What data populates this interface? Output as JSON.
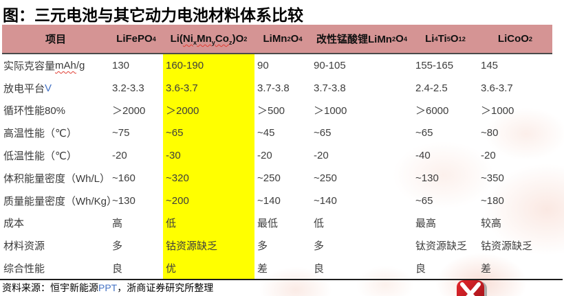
{
  "title": "图：三元电池与其它动力电池材料体系比较",
  "colors": {
    "header_bg": "#d59494",
    "highlight": "#ffff00",
    "logo_red": "#c41e25",
    "squiggle_red": "#e03c31",
    "latin_blue": "#4472c4"
  },
  "table": {
    "highlighted_column_index": 2,
    "columns": [
      {
        "label_html": "项目"
      },
      {
        "label_html": "LiFePO<sub>4</sub>"
      },
      {
        "label_html": "Li(<span class=sq>Ni<sub>x</sub>Mn<sub>y</sub>Co<sub>z</sub></span>)O<sub>2</sub>"
      },
      {
        "label_html": "LiMn<sub>2</sub>O<sub>4</sub>"
      },
      {
        "label_html": "改性锰酸锂LiMn<sub>2</sub>O<sub>4</sub>"
      },
      {
        "label_html": "Li<sub>4</sub>Ti<sub>5</sub>O<sub>12</sub>"
      },
      {
        "label_html": "LiCoO<sub>2</sub>"
      }
    ],
    "rows": [
      {
        "label_html": "实际克容量<span class=sq>mAh</span>/g",
        "values": [
          "130",
          "160-190",
          "90",
          "90-105",
          "155-165",
          "145"
        ]
      },
      {
        "label_html": "放电平台<span class=blu>V</span>",
        "values": [
          "3.2-3.3",
          "3.6-3.7",
          "3.7-3.8",
          "3.7-3.8",
          "2.4-2.5",
          "3.6-3.7"
        ]
      },
      {
        "label_html": "循环性能80%",
        "values": [
          "＞2000",
          "＞2000",
          "＞500",
          "＞1000",
          "＞6000",
          "＞1000"
        ]
      },
      {
        "label_html": "高温性能（℃）",
        "values": [
          "~75",
          "~65",
          "~45",
          "~65",
          "~65",
          "~80"
        ]
      },
      {
        "label_html": "低温性能（℃）",
        "values": [
          "-20",
          "-30",
          "-20",
          "-20",
          "-40",
          "-20"
        ]
      },
      {
        "label_html": "体积能量密度（Wh/L）",
        "values": [
          "~160",
          "~320",
          "~250",
          "~250",
          "~130",
          "~350"
        ]
      },
      {
        "label_html": "质量能量密度（Wh/Kg）",
        "values": [
          "~130",
          "~200",
          "~140",
          "~140",
          "~65",
          "~180"
        ]
      },
      {
        "label_html": "成本",
        "values": [
          "高",
          "低",
          "最低",
          "低",
          "最高",
          "较高"
        ]
      },
      {
        "label_html": "材料资源",
        "values": [
          "多",
          "钴资源缺乏",
          "多",
          "多",
          "钛资源缺乏",
          "钴资源缺乏"
        ]
      },
      {
        "label_html": "综合性能",
        "values": [
          "良",
          "优",
          "差",
          "良",
          "良",
          "差"
        ]
      }
    ]
  },
  "footer": {
    "source_html": "资料来源：恒宇新能源<span class=blu>PPT</span>，浙商证券研究所整理"
  }
}
